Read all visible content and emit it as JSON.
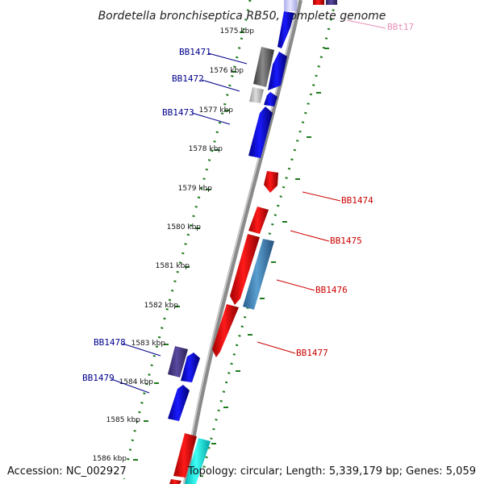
{
  "title": "Bordetella bronchiseptica RB50, complete genome",
  "footer": {
    "accession": "Accession: NC_002927",
    "summary": "Topology: circular; Length: 5,339,179 bp; Genes: 5,059"
  },
  "colors": {
    "backbone": "#8a8a8a",
    "tick": "#1e7b1e",
    "label_forward": "#00008b",
    "label_reverse": "#cc0000",
    "label_rna": "#e68fb8"
  },
  "kbp_labels": [
    "1575 kbp",
    "1576 kbp",
    "1577 kbp",
    "1578 kbp",
    "1579 kbp",
    "1580 kbp",
    "1581 kbp",
    "1582 kbp",
    "1583 kbp",
    "1584 kbp",
    "1585 kbp",
    "1586 kbp"
  ],
  "gene_labels": {
    "BB1471": "BB1471",
    "BB1472": "BB1472",
    "BB1473": "BB1473",
    "BB1474": "BB1474",
    "BB1475": "BB1475",
    "BB1476": "BB1476",
    "BB1477": "BB1477",
    "BB1478": "BB1478",
    "BB1479": "BB1479",
    "BBt17": "BBt17"
  }
}
